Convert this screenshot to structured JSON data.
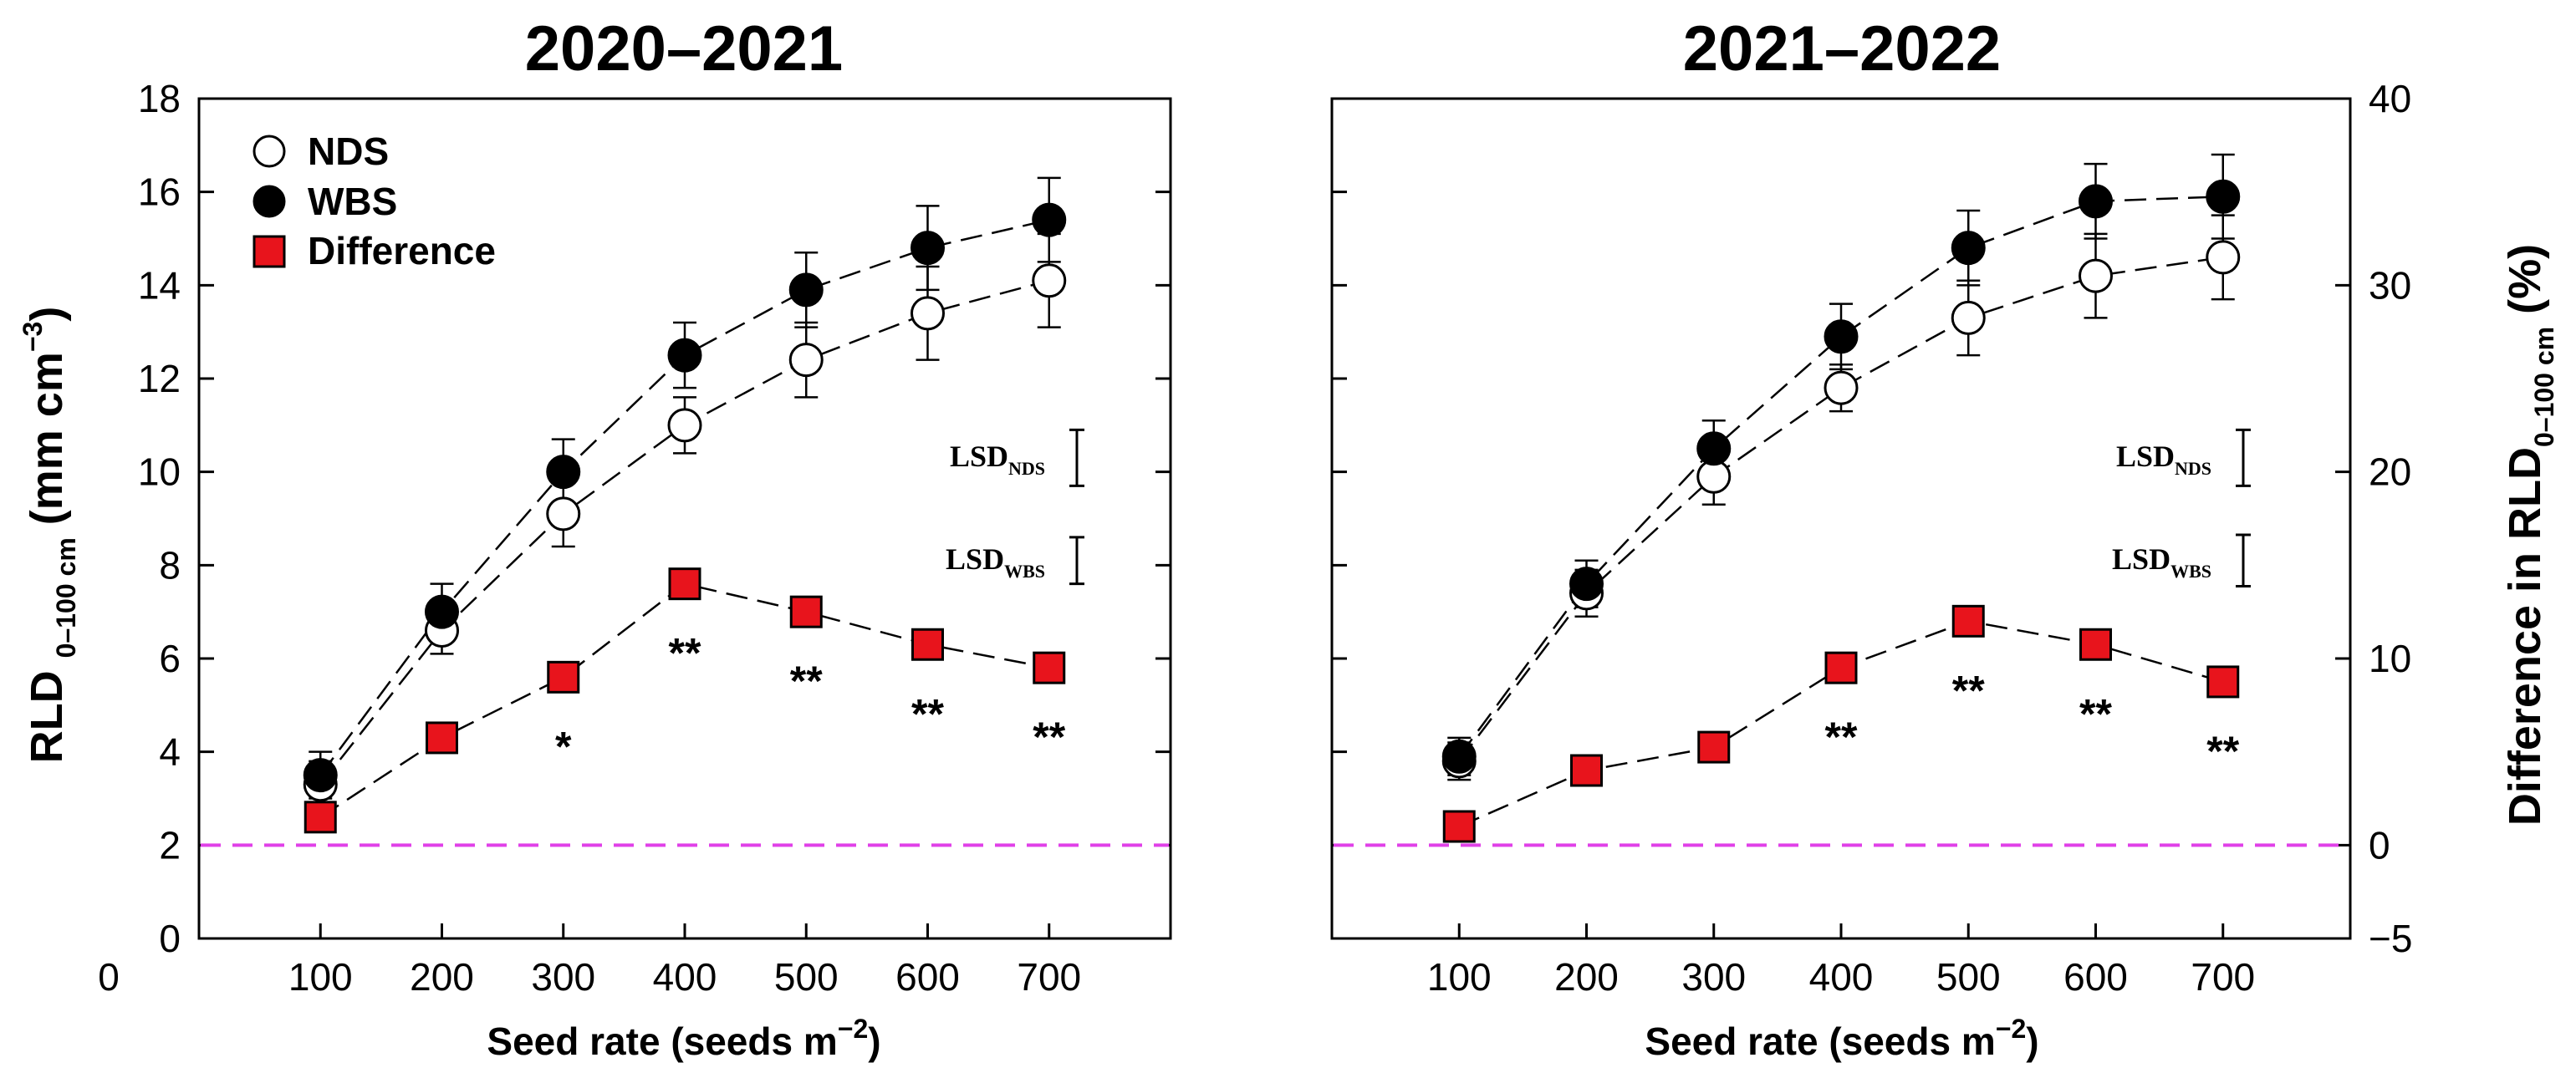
{
  "chart_data": [
    {
      "type": "line",
      "title": "2020–2021",
      "xlabel": {
        "main": "Seed rate (seeds m",
        "sup": "−2",
        "close": ")"
      },
      "ylabel": {
        "main": "RLD ",
        "sub": "0–100 cm",
        "mid": " (mm cm",
        "sup": "−3",
        "close": ")"
      },
      "x_ticks": [
        "0",
        "100",
        "200",
        "300",
        "400",
        "500",
        "600",
        "700"
      ],
      "y_ticks": [
        "0",
        "2",
        "4",
        "6",
        "8",
        "10",
        "12",
        "14",
        "16",
        "18"
      ],
      "xlim": [
        0,
        800
      ],
      "ylim": [
        0,
        18
      ],
      "x": [
        100,
        200,
        300,
        400,
        500,
        600,
        700
      ],
      "series": [
        {
          "name": "NDS",
          "marker": "open-circle",
          "values": [
            3.3,
            6.6,
            9.1,
            11.0,
            12.4,
            13.4,
            14.1
          ],
          "err": [
            0.5,
            0.5,
            0.7,
            0.6,
            0.8,
            1.0,
            1.0
          ]
        },
        {
          "name": "WBS",
          "marker": "filled-circle",
          "values": [
            3.5,
            7.0,
            10.0,
            12.5,
            13.9,
            14.8,
            15.4
          ],
          "err": [
            0.5,
            0.6,
            0.7,
            0.7,
            0.8,
            0.9,
            0.9
          ]
        },
        {
          "name": "Difference",
          "marker": "red-square",
          "values": [
            2.6,
            4.3,
            5.6,
            7.6,
            7.0,
            6.3,
            5.8
          ],
          "sig": [
            "",
            "",
            "*",
            "**",
            "**",
            "**",
            "**"
          ]
        }
      ],
      "legend": [
        "NDS",
        "WBS",
        "Difference"
      ],
      "legend_position": "top-left",
      "reference_line": {
        "y": 2.0,
        "color": "#e040e8",
        "style": "dashed"
      },
      "lsd": [
        {
          "label": "LSD",
          "sub": "NDS",
          "half": 0.6
        },
        {
          "label": "LSD",
          "sub": "WBS",
          "half": 0.5
        }
      ]
    },
    {
      "type": "line",
      "title": "2021–2022",
      "xlabel": {
        "main": "Seed rate (seeds m",
        "sup": "−2",
        "close": ")"
      },
      "y2label": {
        "main": "Difference in RLD",
        "sub": "0–100 cm",
        "close": " (%)"
      },
      "x_ticks": [
        "100",
        "200",
        "300",
        "400",
        "500",
        "600",
        "700"
      ],
      "y2_ticks": [
        "−5",
        "0",
        "10",
        "20",
        "30",
        "40"
      ],
      "xlim": [
        0,
        800
      ],
      "ylim": [
        0,
        18
      ],
      "y2lim": [
        -5,
        40
      ],
      "x": [
        100,
        200,
        300,
        400,
        500,
        600,
        700
      ],
      "series": [
        {
          "name": "NDS",
          "marker": "open-circle",
          "values": [
            3.8,
            7.4,
            9.9,
            11.8,
            13.3,
            14.2,
            14.6
          ],
          "err": [
            0.4,
            0.5,
            0.6,
            0.5,
            0.8,
            0.9,
            0.9
          ]
        },
        {
          "name": "WBS",
          "marker": "filled-circle",
          "values": [
            3.9,
            7.6,
            10.5,
            12.9,
            14.8,
            15.8,
            15.9
          ],
          "err": [
            0.4,
            0.5,
            0.6,
            0.7,
            0.8,
            0.8,
            0.9
          ]
        },
        {
          "name": "Difference",
          "marker": "red-square",
          "values": [
            2.4,
            3.6,
            4.1,
            5.8,
            6.8,
            6.3,
            5.5
          ],
          "sig": [
            "",
            "",
            "",
            "**",
            "**",
            "**",
            "**"
          ]
        }
      ],
      "reference_line": {
        "y": 2.0,
        "color": "#e040e8",
        "style": "dashed"
      },
      "lsd": [
        {
          "label": "LSD",
          "sub": "NDS",
          "half": 0.6
        },
        {
          "label": "LSD",
          "sub": "WBS",
          "half": 0.55
        }
      ]
    }
  ]
}
